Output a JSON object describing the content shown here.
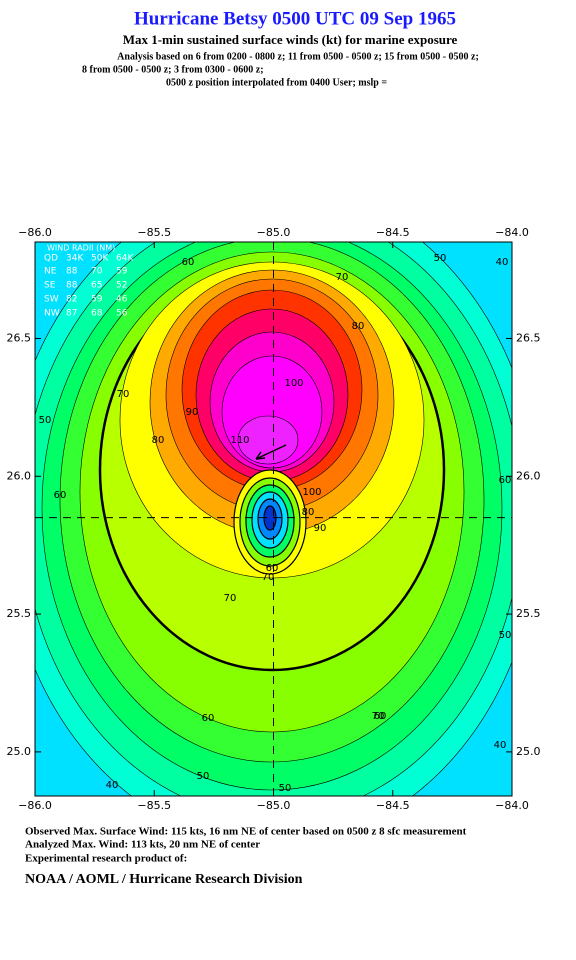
{
  "chart_data": {
    "type": "contour",
    "title": "Hurricane Betsy 0500 UTC 09 Sep 1965",
    "subtitle": "Max 1-min sustained surface winds (kt) for marine exposure",
    "notes": [
      "Analysis based on  6 from 0200 - 0800 z;  11 from 0500 - 0500 z;  15 from 0500 - 0500 z;",
      "8 from 0500 - 0500 z;  3 from 0300 - 0600 z;",
      "0500 z position interpolated from 0400 User; mslp ="
    ],
    "footer": [
      "Observed Max. Surface Wind: 115 kts, 16 nm NE of center based on 0500 z 8 sfc measurement",
      "Analyzed Max. Wind: 113 kts, 20 nm NE of center",
      "Experimental research product of:",
      "NOAA / AOML / Hurricane Research Division"
    ],
    "xlim": [
      -86,
      -84
    ],
    "ylim": [
      24.84,
      26.85
    ],
    "xticks": [
      {
        "value": -86,
        "label": "−86.0"
      },
      {
        "value": -85.5,
        "label": "−85.5"
      },
      {
        "value": -85,
        "label": "−85.0"
      },
      {
        "value": -84.5,
        "label": "−84.5"
      },
      {
        "value": -84,
        "label": "−84.0"
      }
    ],
    "yticks": [
      {
        "value": 25,
        "label": "25.0"
      },
      25.5,
      {
        "value": 26,
        "label": "26.0"
      },
      26.5
    ],
    "center": {
      "x": -85.0,
      "y": 25.85
    },
    "background": "#00e0ff",
    "levels": [
      {
        "value": 40,
        "color": "#00ffd5"
      },
      {
        "value": 45,
        "color": "#00ffa0"
      },
      {
        "value": 50,
        "color": "#00ff66"
      },
      {
        "value": 55,
        "color": "#33ff33"
      },
      {
        "value": 60,
        "color": "#88ff00"
      },
      {
        "value": 64,
        "color": "#b8ff00"
      },
      {
        "value": 70,
        "color": "#ffff00"
      },
      {
        "value": 80,
        "color": "#ffaa00"
      },
      {
        "value": 85,
        "color": "#ff7700"
      },
      {
        "value": 90,
        "color": "#ff3300"
      },
      {
        "value": 95,
        "color": "#ff0066"
      },
      {
        "value": 100,
        "color": "#ff00cc"
      },
      {
        "value": 105,
        "color": "#ff00ff"
      },
      {
        "value": 110,
        "color": "#ee22ff"
      }
    ],
    "eye_levels": [
      {
        "value": 70,
        "color": "#ffff00"
      },
      {
        "value": 60,
        "color": "#88ff00"
      },
      {
        "value": 50,
        "color": "#00ff66"
      },
      {
        "value": 40,
        "color": "#00e0ff"
      },
      {
        "value": 30,
        "color": "#0088ff"
      },
      {
        "value": 20,
        "color": "#0033cc"
      }
    ],
    "contour_labels": [
      60,
      50,
      40,
      50,
      60,
      70,
      80,
      100,
      110,
      90,
      80,
      70,
      70,
      100,
      90,
      80,
      70,
      60,
      70,
      60,
      50,
      60,
      60,
      50,
      40,
      40,
      50
    ],
    "wind_radii": {
      "title": "WIND RADII (NM)",
      "header": [
        "QD",
        "34K",
        "50K",
        "64K"
      ],
      "rows": [
        [
          "NE",
          "88",
          "70",
          "59"
        ],
        [
          "SE",
          "88",
          "65",
          "52"
        ],
        [
          "SW",
          "82",
          "59",
          "46"
        ],
        [
          "NW",
          "87",
          "68",
          "56"
        ]
      ]
    }
  }
}
